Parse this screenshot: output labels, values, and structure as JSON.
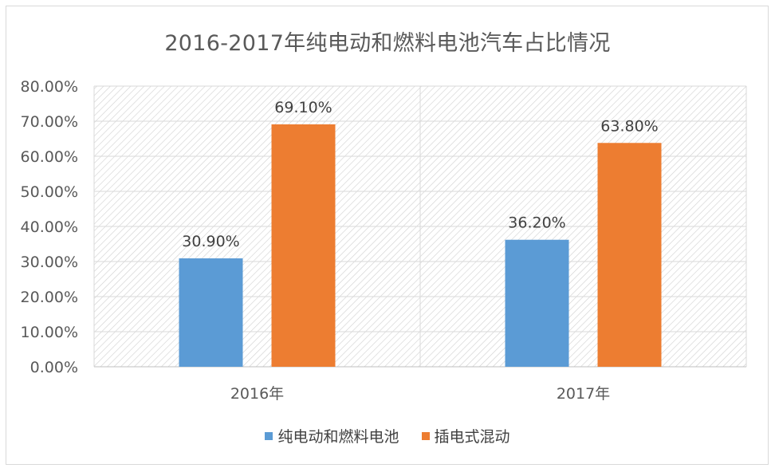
{
  "chart_data": {
    "type": "bar",
    "title": "2016-2017年纯电动和燃料电池汽车占比情况",
    "categories": [
      "2016年",
      "2017年"
    ],
    "series": [
      {
        "name": "纯电动和燃料电池",
        "values": [
          30.9,
          36.2
        ],
        "labels": [
          "30.90%",
          "36.20%"
        ],
        "color": "#5b9bd5"
      },
      {
        "name": "插电式混动",
        "values": [
          69.1,
          63.8
        ],
        "labels": [
          "69.10%",
          "63.80%"
        ],
        "color": "#ed7d31"
      }
    ],
    "ylim": [
      0,
      80
    ],
    "yticks": [
      "0.00%",
      "10.00%",
      "20.00%",
      "30.00%",
      "40.00%",
      "50.00%",
      "60.00%",
      "70.00%",
      "80.00%"
    ],
    "grid": true,
    "legend": "bottom",
    "xlabel": "",
    "ylabel": ""
  }
}
